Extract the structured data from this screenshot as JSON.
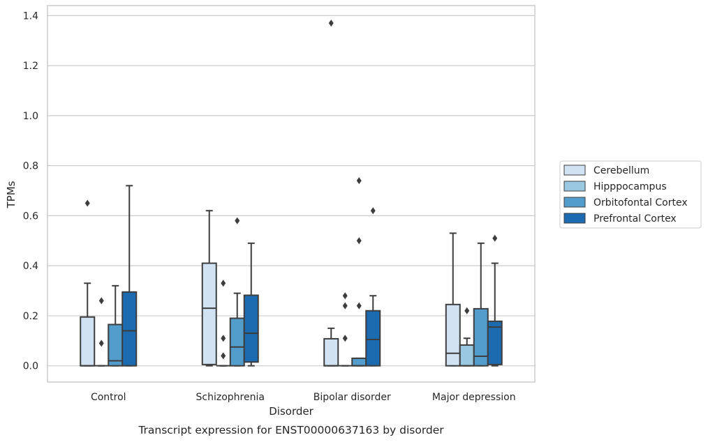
{
  "caption": "Transcript expression for ENST00000637163 by disorder",
  "chart_data": {
    "type": "box",
    "xlabel": "Disorder",
    "ylabel": "TPMs",
    "ylim": [
      -0.065,
      1.44
    ],
    "yticks": [
      0.0,
      0.2,
      0.4,
      0.6,
      0.8,
      1.0,
      1.2,
      1.4
    ],
    "ytick_labels": [
      "0.0",
      "0.2",
      "0.4",
      "0.6",
      "0.8",
      "1.0",
      "1.2",
      "1.4"
    ],
    "grid": "horizontal",
    "legend_position": "right-center",
    "categories": [
      "Control",
      "Schizophrenia",
      "Bipolar disorder",
      "Major depression"
    ],
    "series": [
      {
        "name": "Cerebellum",
        "color": "#d1e2f2",
        "boxes": [
          {
            "whislo": 0.0,
            "q1": 0.0,
            "med": 0.0,
            "q3": 0.195,
            "whishi": 0.33,
            "fliers": [
              0.65
            ]
          },
          {
            "whislo": 0.0,
            "q1": 0.005,
            "med": 0.23,
            "q3": 0.41,
            "whishi": 0.62,
            "fliers": []
          },
          {
            "whislo": 0.0,
            "q1": 0.0,
            "med": 0.0,
            "q3": 0.108,
            "whishi": 0.15,
            "fliers": [
              1.37
            ]
          },
          {
            "whislo": 0.0,
            "q1": 0.0,
            "med": 0.05,
            "q3": 0.245,
            "whishi": 0.53,
            "fliers": []
          }
        ]
      },
      {
        "name": "Hipppocampus",
        "color": "#9ac8e0",
        "boxes": [
          {
            "whislo": 0.0,
            "q1": 0.0,
            "med": 0.0,
            "q3": 0.0,
            "whishi": 0.0,
            "fliers": [
              0.09,
              0.26
            ]
          },
          {
            "whislo": 0.0,
            "q1": 0.0,
            "med": 0.0,
            "q3": 0.0,
            "whishi": 0.0,
            "fliers": [
              0.04,
              0.11,
              0.33
            ]
          },
          {
            "whislo": 0.0,
            "q1": 0.0,
            "med": 0.0,
            "q3": 0.0,
            "whishi": 0.0,
            "fliers": [
              0.11,
              0.24,
              0.28
            ]
          },
          {
            "whislo": 0.0,
            "q1": 0.0,
            "med": 0.0,
            "q3": 0.083,
            "whishi": 0.11,
            "fliers": [
              0.22
            ]
          }
        ]
      },
      {
        "name": "Orbitofontal Cortex",
        "color": "#529dcc",
        "boxes": [
          {
            "whislo": 0.0,
            "q1": 0.0,
            "med": 0.02,
            "q3": 0.165,
            "whishi": 0.32,
            "fliers": []
          },
          {
            "whislo": 0.0,
            "q1": 0.0,
            "med": 0.075,
            "q3": 0.19,
            "whishi": 0.29,
            "fliers": [
              0.58
            ]
          },
          {
            "whislo": 0.0,
            "q1": 0.0,
            "med": 0.0,
            "q3": 0.03,
            "whishi": 0.03,
            "fliers": [
              0.24,
              0.5,
              0.74
            ]
          },
          {
            "whislo": 0.0,
            "q1": 0.0,
            "med": 0.038,
            "q3": 0.228,
            "whishi": 0.49,
            "fliers": []
          }
        ]
      },
      {
        "name": "Prefrontal Cortex",
        "color": "#1c6aaf",
        "boxes": [
          {
            "whislo": 0.0,
            "q1": 0.0,
            "med": 0.14,
            "q3": 0.295,
            "whishi": 0.72,
            "fliers": []
          },
          {
            "whislo": 0.0,
            "q1": 0.015,
            "med": 0.13,
            "q3": 0.282,
            "whishi": 0.49,
            "fliers": []
          },
          {
            "whislo": 0.0,
            "q1": 0.0,
            "med": 0.105,
            "q3": 0.22,
            "whishi": 0.28,
            "fliers": [
              0.62
            ]
          },
          {
            "whislo": 0.0,
            "q1": 0.005,
            "med": 0.155,
            "q3": 0.178,
            "whishi": 0.41,
            "fliers": [
              0.51
            ]
          }
        ]
      }
    ]
  }
}
